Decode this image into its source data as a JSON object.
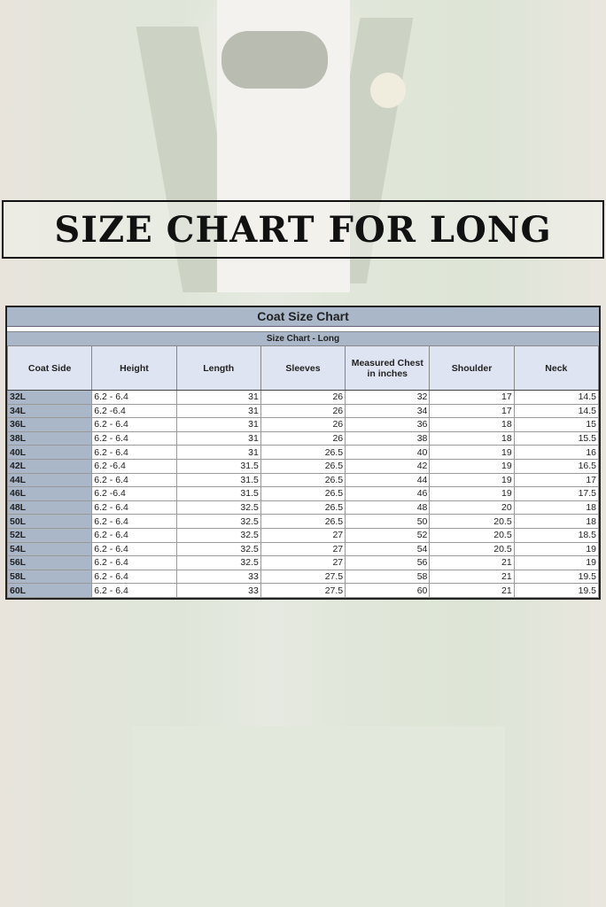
{
  "banner": {
    "title": "SIZE CHART FOR LONG"
  },
  "table": {
    "title": "Coat Size Chart",
    "subtitle": "Size Chart - Long",
    "headers": [
      "Coat Side",
      "Height",
      "Length",
      "Sleeves",
      "Measured Chest in inches",
      "Shoulder",
      "Neck"
    ],
    "rows": [
      [
        "32L",
        "6.2 - 6.4",
        "31",
        "26",
        "32",
        "17",
        "14.5"
      ],
      [
        "34L",
        "6.2 -6.4",
        "31",
        "26",
        "34",
        "17",
        "14.5"
      ],
      [
        "36L",
        "6.2 - 6.4",
        "31",
        "26",
        "36",
        "18",
        "15"
      ],
      [
        "38L",
        "6.2 - 6.4",
        "31",
        "26",
        "38",
        "18",
        "15.5"
      ],
      [
        "40L",
        "6.2 - 6.4",
        "31",
        "26.5",
        "40",
        "19",
        "16"
      ],
      [
        "42L",
        "6.2 -6.4",
        "31.5",
        "26.5",
        "42",
        "19",
        "16.5"
      ],
      [
        "44L",
        "6.2 - 6.4",
        "31.5",
        "26.5",
        "44",
        "19",
        "17"
      ],
      [
        "46L",
        "6.2 -6.4",
        "31.5",
        "26.5",
        "46",
        "19",
        "17.5"
      ],
      [
        "48L",
        "6.2 - 6.4",
        "32.5",
        "26.5",
        "48",
        "20",
        "18"
      ],
      [
        "50L",
        "6.2 - 6.4",
        "32.5",
        "26.5",
        "50",
        "20.5",
        "18"
      ],
      [
        "52L",
        "6.2 - 6.4",
        "32.5",
        "27",
        "52",
        "20.5",
        "18.5"
      ],
      [
        "54L",
        "6.2 - 6.4",
        "32.5",
        "27",
        "54",
        "20.5",
        "19"
      ],
      [
        "56L",
        "6.2 - 6.4",
        "32.5",
        "27",
        "56",
        "21",
        "19"
      ],
      [
        "58L",
        "6.2 - 6.4",
        "33",
        "27.5",
        "58",
        "21",
        "19.5"
      ],
      [
        "60L",
        "6.2 - 6.4",
        "33",
        "27.5",
        "60",
        "21",
        "19.5"
      ]
    ]
  }
}
